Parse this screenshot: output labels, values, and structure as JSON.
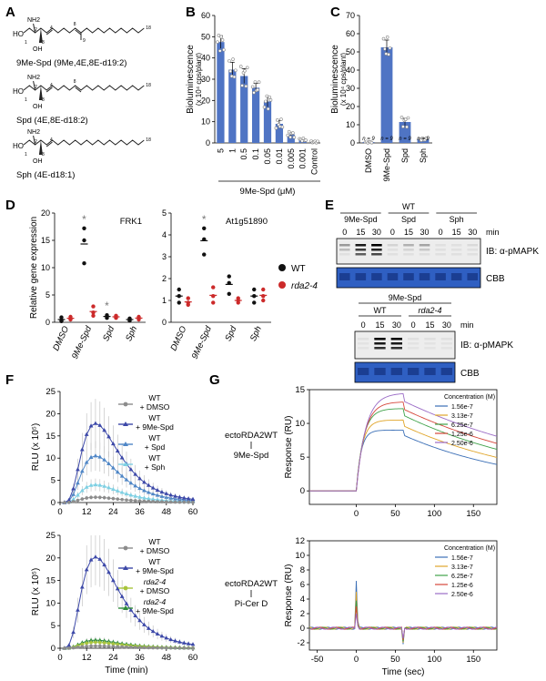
{
  "panel_letters": [
    "A",
    "B",
    "C",
    "D",
    "E",
    "F",
    "G"
  ],
  "panelA": {
    "compounds": [
      {
        "name": "9Me-Spd (9Me,4E,8E-d19:2)"
      },
      {
        "name": "Spd (4E,8E-d18:2)"
      },
      {
        "name": "Sph (4E-d18:1)"
      }
    ],
    "atom_labels": {
      "nh2": "NH2",
      "oh": "OH",
      "ho": "HO",
      "n1": "1",
      "n2": "2",
      "n3": "3",
      "n4": "4",
      "n8": "8",
      "n9": "9",
      "n18": "18"
    }
  },
  "chart_data": [
    {
      "panel": "B",
      "type": "bar",
      "ylabel": "Bioluminescence",
      "ylabel2": "(x 10⁴ cps/plant)",
      "xlabel": "9Me-Spd (μM)",
      "categories": [
        "5",
        "1",
        "0.5",
        "0.1",
        "0.05",
        "0.01",
        "0.005",
        "0.001",
        "Control"
      ],
      "values": [
        47.5,
        34.5,
        31.5,
        26,
        19.5,
        9,
        4,
        1.5,
        0.5
      ],
      "errors": [
        3,
        3.5,
        3.5,
        2,
        2.5,
        1.5,
        1,
        0.5,
        0.3
      ],
      "ylim": [
        0,
        60
      ],
      "yticks": [
        0,
        10,
        20,
        30,
        40,
        50,
        60
      ],
      "color": "#4f74c4"
    },
    {
      "panel": "C",
      "type": "bar",
      "ylabel": "Bioluminescence",
      "ylabel2": "(x 10⁴ cps/plant)",
      "categories": [
        "DMSO",
        "9Me-Spd",
        "Spd",
        "Sph"
      ],
      "values": [
        0.5,
        52.5,
        11.5,
        2
      ],
      "errors": [
        0.3,
        4,
        2,
        0.5
      ],
      "n_labels": [
        "n = 9",
        "n = 9",
        "n = 9",
        "n = 9"
      ],
      "ylim": [
        0,
        70
      ],
      "yticks": [
        0,
        10,
        20,
        30,
        40,
        50,
        60,
        70
      ],
      "color": "#4f74c4"
    },
    {
      "panel": "D-left",
      "type": "scatter",
      "title": "FRK1",
      "ylabel": "Relative gene expression",
      "categories": [
        "DMSO",
        "9Me-Spd",
        "Spd",
        "Sph"
      ],
      "ylim": [
        0,
        20
      ],
      "yticks": [
        0,
        5,
        10,
        15,
        20
      ],
      "series": [
        {
          "name": "WT",
          "color": "#111111",
          "points": [
            [
              0.2,
              0.4,
              0.9
            ],
            [
              10.8,
              15,
              17.2
            ],
            [
              0.8,
              1.1,
              1.3
            ],
            [
              0.3,
              0.5,
              0.7
            ]
          ]
        },
        {
          "name": "rda2-4",
          "color": "#cc2a2a",
          "points": [
            [
              0.5,
              0.7,
              1
            ],
            [
              1.2,
              1.8,
              2.9
            ],
            [
              0.8,
              1,
              1.2
            ],
            [
              0.5,
              0.8,
              1
            ]
          ]
        }
      ],
      "asterisks": [
        "",
        "*",
        "*",
        ""
      ]
    },
    {
      "panel": "D-right",
      "type": "scatter",
      "title": "At1g51890",
      "categories": [
        "DMSO",
        "9Me-Spd",
        "Spd",
        "Sph"
      ],
      "ylim": [
        0,
        5
      ],
      "yticks": [
        0,
        1,
        2,
        3,
        4,
        5
      ],
      "series": [
        {
          "name": "WT",
          "color": "#111111",
          "points": [
            [
              0.9,
              1.2,
              1.5
            ],
            [
              3.1,
              3.8,
              4.3
            ],
            [
              1.3,
              1.8,
              2.1
            ],
            [
              0.9,
              1.2,
              1.5
            ]
          ]
        },
        {
          "name": "rda2-4",
          "color": "#cc2a2a",
          "points": [
            [
              0.8,
              0.9,
              1.1
            ],
            [
              0.9,
              1.2,
              1.6
            ],
            [
              0.9,
              1,
              1.1
            ],
            [
              1,
              1.2,
              1.5
            ]
          ]
        }
      ],
      "asterisks": [
        "",
        "*",
        "",
        ""
      ],
      "legend": [
        "WT",
        "rda2-4"
      ]
    },
    {
      "panel": "F-top",
      "type": "line",
      "ylabel": "RLU (x 10⁵)",
      "ylim": [
        0,
        25
      ],
      "yticks": [
        0,
        5,
        10,
        15,
        20,
        25
      ],
      "xlim": [
        0,
        60
      ],
      "xticks": [
        0,
        12,
        24,
        36,
        48,
        60
      ],
      "series": [
        {
          "name": "WT + DMSO",
          "line1": "WT",
          "line2": "+ DMSO",
          "color": "#8c8c8c",
          "marker": "circle",
          "peak": 1.2
        },
        {
          "name": "WT + 9Me-Spd",
          "line1": "WT",
          "line2": "+ 9Me-Spd",
          "color": "#3c48a8",
          "marker": "triangle",
          "peak": 17.8
        },
        {
          "name": "WT + Spd",
          "line1": "WT",
          "line2": "+ Spd",
          "color": "#4f86c6",
          "marker": "triangle",
          "peak": 10.5
        },
        {
          "name": "WT + Sph",
          "line1": "WT",
          "line2": "+ Sph",
          "color": "#7fd0e3",
          "marker": "triangle",
          "peak": 4
        }
      ]
    },
    {
      "panel": "F-bottom",
      "type": "line",
      "ylabel": "RLU (x 10⁵)",
      "xlabel": "Time (min)",
      "ylim": [
        0,
        25
      ],
      "yticks": [
        0,
        5,
        10,
        15,
        20,
        25
      ],
      "xlim": [
        0,
        60
      ],
      "xticks": [
        0,
        12,
        24,
        36,
        48,
        60
      ],
      "series": [
        {
          "name": "WT + DMSO",
          "line1": "WT",
          "line2": "+ DMSO",
          "color": "#8c8c8c",
          "marker": "circle",
          "peak": 0.5
        },
        {
          "name": "WT + 9Me-Spd",
          "line1": "WT",
          "line2": "+ 9Me-Spd",
          "color": "#3c48a8",
          "marker": "triangle",
          "peak": 20.2
        },
        {
          "name": "rda2-4 + DMSO",
          "line1": "rda2-4",
          "line2": "+ DMSO",
          "color": "#a8c43c",
          "marker": "circle",
          "peak": 1.3
        },
        {
          "name": "rda2-4 + 9Me-Spd",
          "line1": "rda2-4",
          "line2": "+ 9Me-Spd",
          "color": "#2e8b3a",
          "marker": "triangle",
          "peak": 1.8
        }
      ]
    },
    {
      "panel": "G-top",
      "type": "line",
      "ylabel": "Response (RU)",
      "ylim": [
        -2,
        15
      ],
      "yticks": [
        0,
        5,
        10,
        15
      ],
      "xlim": [
        -60,
        180
      ],
      "xticks": [
        0,
        50,
        100,
        150
      ],
      "legend_title": "Concentration (M)",
      "series": [
        {
          "name": "1.56e-7",
          "color": "#3b6fb6",
          "plateau": 9
        },
        {
          "name": "3.13e-7",
          "color": "#e0a52a",
          "plateau": 10.5
        },
        {
          "name": "6.25e-7",
          "color": "#3fa24a",
          "plateau": 12.2
        },
        {
          "name": "1.25e-6",
          "color": "#d6453a",
          "plateau": 13.2
        },
        {
          "name": "2.50e-6",
          "color": "#9b6cc6",
          "plateau": 14.5
        }
      ],
      "construct": "ectoRDA2WT",
      "analyte": "9Me-Spd"
    },
    {
      "panel": "G-bottom",
      "type": "line",
      "ylabel": "Response (RU)",
      "xlabel": "Time (sec)",
      "ylim": [
        -3,
        12
      ],
      "yticks": [
        -2,
        0,
        2,
        4,
        6,
        8,
        10,
        12
      ],
      "xlim": [
        -60,
        180
      ],
      "xticks": [
        -50,
        0,
        50,
        100,
        150
      ],
      "legend_title": "Concentration (M)",
      "series": [
        {
          "name": "1.56e-7",
          "color": "#3b6fb6"
        },
        {
          "name": "3.13e-7",
          "color": "#e0a52a"
        },
        {
          "name": "6.25e-7",
          "color": "#3fa24a"
        },
        {
          "name": "1.25e-6",
          "color": "#d6453a"
        },
        {
          "name": "2.50e-6",
          "color": "#9b6cc6"
        }
      ],
      "construct": "ectoRDA2WT",
      "analyte": "Pi-Cer D"
    }
  ],
  "panelE": {
    "top": {
      "genotype": "WT",
      "treatments": [
        "9Me-Spd",
        "Spd",
        "Sph"
      ],
      "times": [
        "0",
        "15",
        "30",
        "0",
        "15",
        "30",
        "0",
        "15",
        "30"
      ],
      "min_label": "min",
      "ib_label": "IB: α-pMAPK",
      "cbb_label": "CBB"
    },
    "bottom": {
      "treatment": "9Me-Spd",
      "genotypes": [
        "WT",
        "rda2-4"
      ],
      "times": [
        "0",
        "15",
        "30",
        "0",
        "15",
        "30"
      ],
      "min_label": "min",
      "ib_label": "IB: α-pMAPK",
      "cbb_label": "CBB"
    }
  }
}
